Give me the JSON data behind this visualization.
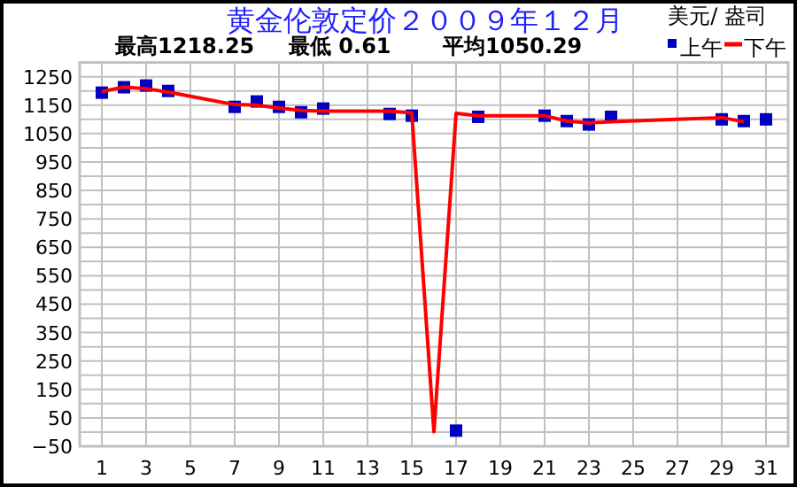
{
  "chart_data": {
    "type": "line",
    "title": "黄金伦敦定价２００９年１２月",
    "ylabel": "美元/ 盎司",
    "annotations": [
      "最高1218.25",
      "最低 0.61",
      "平均1050.29"
    ],
    "xlim": [
      0,
      32
    ],
    "xticks": [
      1,
      3,
      5,
      7,
      9,
      11,
      13,
      15,
      17,
      19,
      21,
      23,
      25,
      27,
      29,
      31
    ],
    "ylim": [
      -50,
      1300
    ],
    "yticks": [
      -50,
      {
        "value": 0,
        "label": null
      },
      50,
      {
        "value": 100,
        "label": null
      },
      150,
      {
        "value": 200,
        "label": null
      },
      250,
      {
        "value": 300,
        "label": null
      },
      350,
      {
        "value": 400,
        "label": null
      },
      450,
      {
        "value": 500,
        "label": null
      },
      550,
      {
        "value": 600,
        "label": null
      },
      650,
      {
        "value": 700,
        "label": null
      },
      750,
      {
        "value": 800,
        "label": null
      },
      850,
      {
        "value": 900,
        "label": null
      },
      950,
      {
        "value": 1000,
        "label": null
      },
      1050,
      {
        "value": 1100,
        "label": null
      },
      1150,
      {
        "value": 1200,
        "label": null
      },
      1250
    ],
    "grid": true,
    "legend": "top right",
    "series": [
      {
        "name": "上午",
        "type": "scatter",
        "marker": "square",
        "color": "#0000c0",
        "x": [
          1,
          2,
          3,
          4,
          7,
          8,
          9,
          10,
          11,
          14,
          15,
          17,
          18,
          21,
          22,
          23,
          24,
          29,
          30,
          31
        ],
        "values": [
          1194,
          1213,
          1219,
          1200,
          1144,
          1163,
          1144,
          1125,
          1138,
          1119,
          1113,
          5,
          1109,
          1113,
          1094,
          1082,
          1109,
          1100,
          1094,
          1100
        ]
      },
      {
        "name": "下午",
        "marker": "none",
        "color": "#ff0000",
        "x": [
          1,
          2,
          3,
          4,
          7,
          8,
          9,
          10,
          11,
          14,
          15,
          16,
          17,
          18,
          21,
          22,
          23,
          24,
          29,
          30
        ],
        "values": [
          1198,
          1214,
          1208,
          1196,
          1152,
          1150,
          1140,
          1131,
          1129,
          1129,
          1123,
          1,
          1121,
          1113,
          1113,
          1094,
          1088,
          1092,
          1106,
          1092
        ]
      }
    ]
  }
}
